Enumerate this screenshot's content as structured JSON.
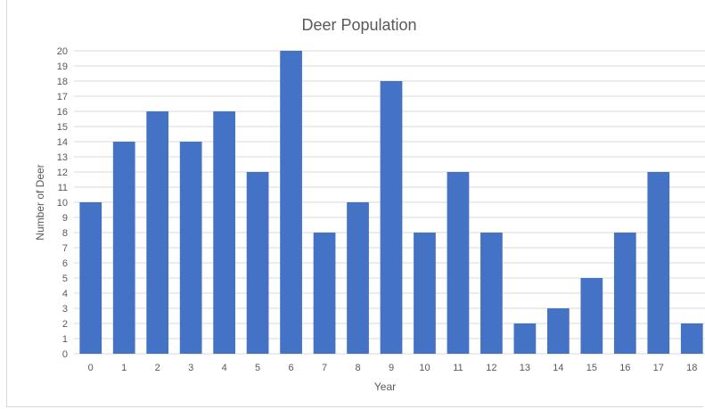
{
  "chart_data": {
    "type": "bar",
    "title": "Deer Population",
    "xlabel": "Year",
    "ylabel": "Number of Deer",
    "categories": [
      "0",
      "1",
      "2",
      "3",
      "4",
      "5",
      "6",
      "7",
      "8",
      "9",
      "10",
      "11",
      "12",
      "13",
      "14",
      "15",
      "16",
      "17",
      "18"
    ],
    "values": [
      10,
      14,
      16,
      14,
      16,
      12,
      20,
      8,
      10,
      18,
      8,
      12,
      8,
      2,
      3,
      5,
      8,
      12,
      2
    ],
    "ylim": [
      0,
      20
    ],
    "ytick_step": 1,
    "grid": true,
    "legend": "none",
    "bar_color": "#4472c4"
  }
}
